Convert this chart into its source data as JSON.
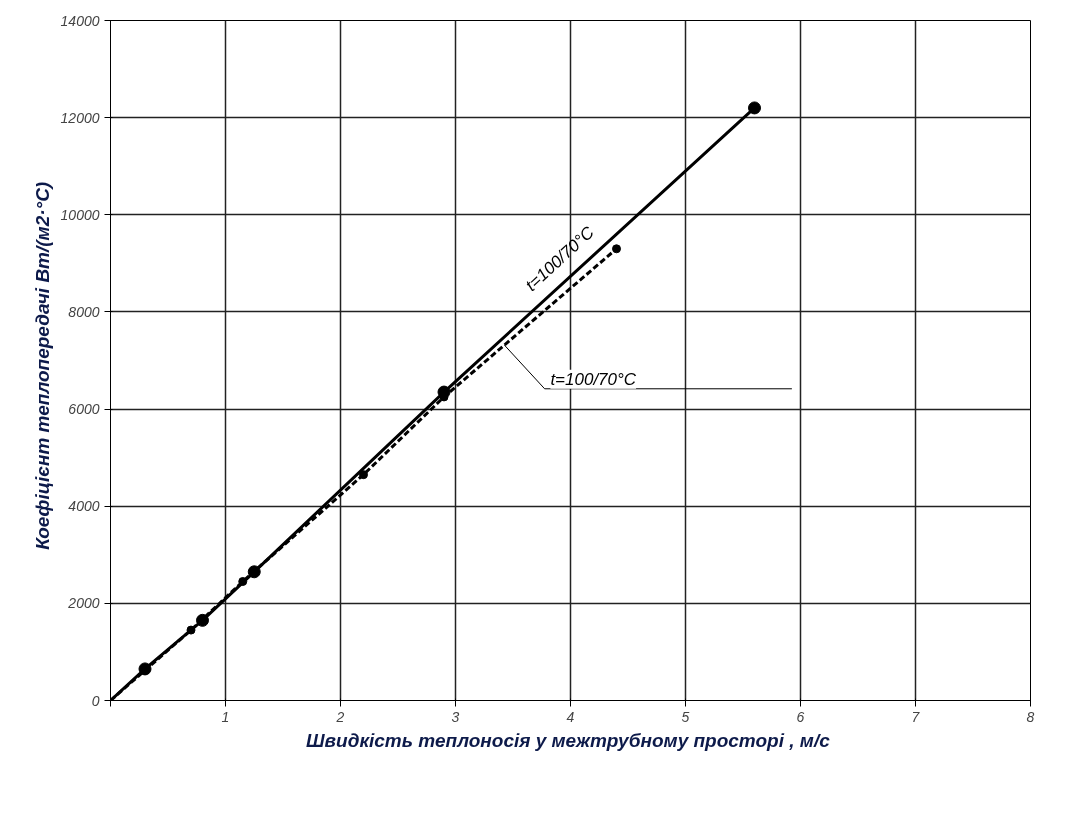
{
  "chart_data": {
    "type": "line",
    "xlabel": "Швидкість теплоносія у межтрубному просторі  , м/с",
    "ylabel": "Коефіцієнт теплопередачі   Вт/(м2·°С)",
    "xlim": [
      0,
      8
    ],
    "ylim": [
      0,
      14000
    ],
    "xticks": [
      {
        "value": 0,
        "label": null
      },
      1,
      2,
      3,
      4,
      5,
      6,
      7,
      8
    ],
    "yticks": [
      0,
      2000,
      4000,
      6000,
      8000,
      10000,
      12000,
      14000
    ],
    "grid": true,
    "marker": "circle",
    "series": [
      {
        "name": "t=100/70°C",
        "color": "#000000",
        "line_style": "solid",
        "x": [
          0,
          0.3,
          0.8,
          1.25,
          2.9,
          5.6
        ],
        "values": [
          0,
          650,
          1650,
          2650,
          6350,
          12200
        ]
      },
      {
        "name": "t=100/70°C",
        "color": "#000000",
        "line_style": "dashed",
        "x": [
          0,
          0.3,
          0.7,
          1.15,
          2.2,
          2.9,
          4.4
        ],
        "values": [
          0,
          620,
          1450,
          2450,
          4650,
          6250,
          9300
        ]
      }
    ]
  }
}
